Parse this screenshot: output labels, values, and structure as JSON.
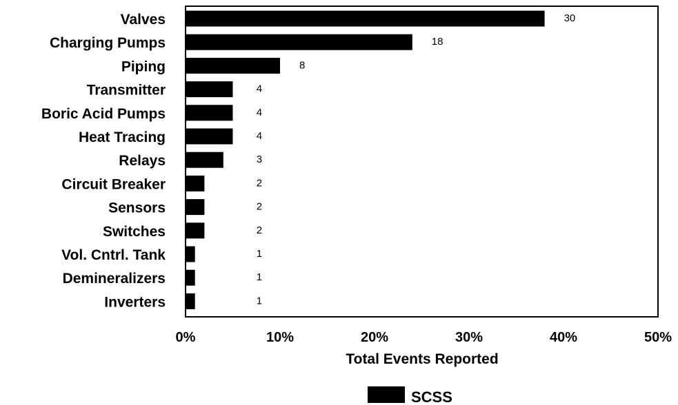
{
  "chart_data": {
    "type": "bar",
    "orientation": "horizontal",
    "categories": [
      "Valves",
      "Charging Pumps",
      "Piping",
      "Transmitter",
      "Boric Acid Pumps",
      "Heat Tracing",
      "Relays",
      "Circuit Breaker",
      "Sensors",
      "Switches",
      "Vol. Cntrl. Tank",
      "Demineralizers",
      "Inverters"
    ],
    "series": [
      {
        "name": "SCSS",
        "percent_values": [
          38,
          24,
          10,
          5,
          5,
          5,
          4,
          2,
          2,
          2,
          1,
          1,
          1
        ],
        "counts": [
          30,
          18,
          8,
          4,
          4,
          4,
          3,
          2,
          2,
          2,
          1,
          1,
          1
        ],
        "color": "#000000"
      }
    ],
    "xlabel": "Total Events Reported",
    "xlim": [
      0,
      50
    ],
    "x_ticks": [
      "0%",
      "10%",
      "20%",
      "30%",
      "40%",
      "50%"
    ],
    "grid": false,
    "legend_position": "bottom-center"
  }
}
